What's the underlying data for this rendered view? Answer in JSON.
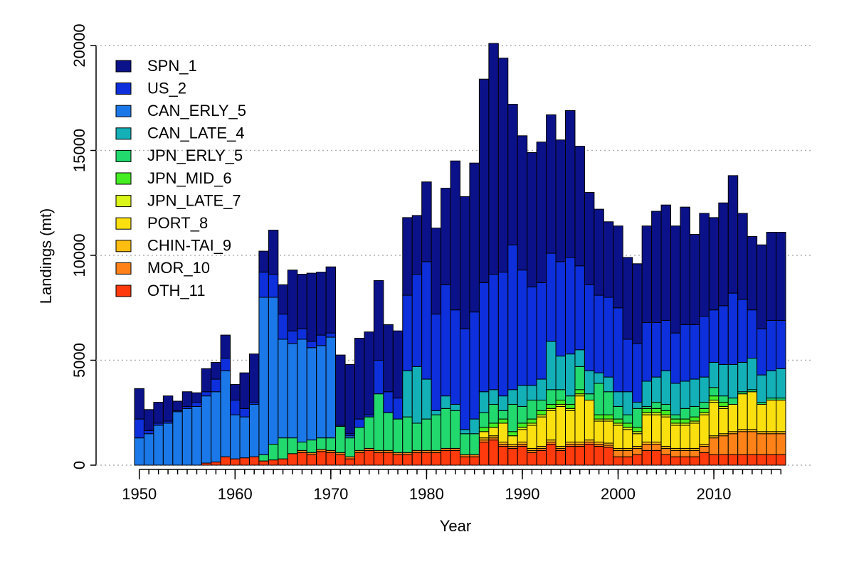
{
  "chart_data": {
    "type": "bar",
    "stacked": true,
    "x_label": "Year",
    "y_label": "Landings (mt)",
    "x": [
      1950,
      1951,
      1952,
      1953,
      1954,
      1955,
      1956,
      1957,
      1958,
      1959,
      1960,
      1961,
      1962,
      1963,
      1964,
      1965,
      1966,
      1967,
      1968,
      1969,
      1970,
      1971,
      1972,
      1973,
      1974,
      1975,
      1976,
      1977,
      1978,
      1979,
      1980,
      1981,
      1982,
      1983,
      1984,
      1985,
      1986,
      1987,
      1988,
      1989,
      1990,
      1991,
      1992,
      1993,
      1994,
      1995,
      1996,
      1997,
      1998,
      1999,
      2000,
      2001,
      2002,
      2003,
      2004,
      2005,
      2006,
      2007,
      2008,
      2009,
      2010,
      2011,
      2012,
      2013,
      2014,
      2015,
      2016,
      2017
    ],
    "series": [
      {
        "name": "SPN_1",
        "color": "#0b1289",
        "values": [
          1450,
          1000,
          1000,
          1200,
          450,
          700,
          450,
          1100,
          800,
          1100,
          750,
          1700,
          2300,
          1000,
          2100,
          1400,
          2900,
          2600,
          3250,
          3000,
          3150,
          3350,
          3300,
          3850,
          3950,
          3800,
          3200,
          3200,
          3700,
          2800,
          3800,
          4100,
          4600,
          7100,
          6300,
          7100,
          9700,
          11000,
          10200,
          6700,
          6400,
          6400,
          6700,
          6600,
          5800,
          7000,
          5700,
          4400,
          4100,
          3600,
          3900,
          3900,
          3800,
          4600,
          5300,
          5500,
          5100,
          5600,
          4300,
          4900,
          4400,
          4900,
          5600,
          4100,
          3500,
          4000,
          4200,
          4200
        ]
      },
      {
        "name": "US_2",
        "color": "#0d2fdc",
        "values": [
          900,
          150,
          100,
          100,
          50,
          100,
          200,
          200,
          600,
          600,
          700,
          400,
          100,
          1200,
          1100,
          1200,
          600,
          500,
          300,
          500,
          200,
          50,
          100,
          400,
          100,
          1600,
          1000,
          1000,
          3600,
          4400,
          5600,
          4600,
          5300,
          4500,
          4800,
          5100,
          5200,
          5500,
          5900,
          6900,
          5500,
          4700,
          4600,
          4200,
          4500,
          4600,
          4000,
          4100,
          3700,
          3800,
          4000,
          2500,
          2800,
          2800,
          2600,
          2400,
          2400,
          2700,
          2600,
          2900,
          2500,
          2800,
          3400,
          3000,
          2300,
          2200,
          2400,
          2300
        ]
      },
      {
        "name": "CAN_ERLY_5",
        "color": "#1b78e8",
        "values": [
          1300,
          1500,
          1900,
          2000,
          2550,
          2700,
          2800,
          3200,
          3350,
          4100,
          2100,
          1950,
          2500,
          7500,
          7000,
          4700,
          4500,
          4900,
          4400,
          4400,
          4800,
          0,
          100,
          0,
          0,
          0,
          0,
          0,
          0,
          0,
          0,
          0,
          0,
          0,
          0,
          0,
          0,
          0,
          0,
          0,
          0,
          0,
          0,
          0,
          0,
          0,
          0,
          0,
          0,
          0,
          0,
          0,
          0,
          0,
          0,
          0,
          0,
          0,
          0,
          0,
          0,
          0,
          0,
          0,
          0,
          0,
          0,
          0
        ]
      },
      {
        "name": "CAN_LATE_4",
        "color": "#13b0b8",
        "values": [
          0,
          0,
          0,
          0,
          0,
          0,
          0,
          0,
          0,
          0,
          0,
          0,
          0,
          0,
          0,
          0,
          0,
          0,
          0,
          0,
          0,
          0,
          0,
          0,
          0,
          0,
          0,
          0,
          2200,
          2700,
          1900,
          200,
          600,
          300,
          200,
          700,
          1000,
          700,
          700,
          700,
          1000,
          700,
          1000,
          2300,
          1600,
          2000,
          800,
          1100,
          500,
          700,
          700,
          1100,
          300,
          1200,
          1200,
          1600,
          1500,
          1300,
          1300,
          1200,
          1200,
          1500,
          1600,
          1400,
          1500,
          1300,
          1300,
          1400
        ]
      },
      {
        "name": "JPN_ERLY_5",
        "color": "#22d96e",
        "values": [
          0,
          0,
          0,
          0,
          0,
          0,
          0,
          0,
          0,
          0,
          0,
          0,
          0,
          300,
          750,
          1000,
          750,
          400,
          600,
          550,
          600,
          1250,
          900,
          1100,
          1500,
          2700,
          1800,
          1600,
          1700,
          1300,
          1500,
          1700,
          1900,
          1800,
          1000,
          1000,
          700,
          900,
          400,
          1300,
          800,
          900,
          500,
          700,
          500,
          400,
          1100,
          300,
          1500,
          1100,
          600,
          400,
          900,
          100,
          300,
          300,
          200,
          500,
          500,
          300,
          400,
          300,
          300,
          100,
          100,
          100,
          100,
          100
        ]
      },
      {
        "name": "JPN_MID_6",
        "color": "#44ee22",
        "values": [
          0,
          0,
          0,
          0,
          0,
          0,
          0,
          0,
          0,
          0,
          0,
          0,
          0,
          0,
          0,
          0,
          0,
          0,
          0,
          0,
          0,
          0,
          0,
          0,
          0,
          0,
          0,
          0,
          0,
          0,
          0,
          0,
          0,
          0,
          0,
          0,
          200,
          200,
          200,
          200,
          200,
          200,
          200,
          200,
          200,
          200,
          200,
          0,
          200,
          200,
          200,
          200,
          200,
          200,
          200,
          200,
          200,
          200,
          200,
          200,
          200,
          200,
          0,
          0,
          0,
          0,
          0,
          0
        ]
      },
      {
        "name": "JPN_LATE_7",
        "color": "#dcf518",
        "values": [
          0,
          0,
          0,
          0,
          0,
          0,
          0,
          0,
          0,
          0,
          0,
          0,
          0,
          0,
          0,
          0,
          0,
          0,
          0,
          0,
          0,
          0,
          0,
          0,
          0,
          0,
          0,
          0,
          0,
          0,
          0,
          0,
          0,
          0,
          0,
          0,
          0,
          0,
          0,
          0,
          100,
          100,
          100,
          100,
          100,
          100,
          100,
          0,
          100,
          100,
          100,
          100,
          100,
          100,
          100,
          100,
          100,
          100,
          100,
          100,
          100,
          100,
          0,
          0,
          0,
          0,
          0,
          0
        ]
      },
      {
        "name": "PORT_8",
        "color": "#fbe010",
        "values": [
          0,
          0,
          0,
          0,
          0,
          0,
          0,
          0,
          0,
          0,
          0,
          0,
          0,
          0,
          0,
          0,
          0,
          0,
          0,
          0,
          0,
          0,
          0,
          0,
          0,
          0,
          0,
          0,
          0,
          0,
          0,
          0,
          0,
          0,
          0,
          0,
          300,
          400,
          900,
          400,
          600,
          1100,
          1400,
          1400,
          1900,
          1500,
          2200,
          1900,
          1000,
          1050,
          1100,
          900,
          600,
          1300,
          1300,
          1400,
          1100,
          1100,
          1200,
          1400,
          1600,
          1200,
          1300,
          1700,
          1800,
          1300,
          1500,
          1500
        ]
      },
      {
        "name": "CHIN-TAI_9",
        "color": "#ffbd10",
        "values": [
          0,
          0,
          0,
          0,
          0,
          0,
          0,
          0,
          0,
          0,
          0,
          0,
          0,
          0,
          0,
          0,
          0,
          0,
          0,
          0,
          0,
          0,
          0,
          0,
          0,
          0,
          0,
          0,
          0,
          0,
          0,
          0,
          0,
          0,
          0,
          0,
          100,
          100,
          100,
          100,
          100,
          100,
          100,
          100,
          100,
          100,
          100,
          100,
          100,
          100,
          100,
          100,
          100,
          100,
          100,
          100,
          100,
          100,
          100,
          100,
          100,
          100,
          100,
          100,
          100,
          100,
          100,
          100
        ]
      },
      {
        "name": "MOR_10",
        "color": "#ff8218",
        "values": [
          0,
          0,
          0,
          0,
          0,
          0,
          0,
          0,
          0,
          0,
          0,
          0,
          0,
          0,
          0,
          0,
          0,
          100,
          100,
          100,
          100,
          100,
          100,
          100,
          100,
          100,
          100,
          100,
          100,
          100,
          100,
          100,
          100,
          100,
          100,
          100,
          100,
          100,
          100,
          100,
          100,
          100,
          100,
          100,
          100,
          100,
          100,
          100,
          100,
          100,
          300,
          300,
          300,
          300,
          300,
          300,
          300,
          300,
          300,
          300,
          800,
          900,
          1000,
          1100,
          1100,
          1000,
          1000,
          1000
        ]
      },
      {
        "name": "OTH_11",
        "color": "#ff3a0c",
        "values": [
          0,
          0,
          0,
          0,
          0,
          0,
          0,
          100,
          150,
          400,
          300,
          350,
          400,
          200,
          250,
          300,
          550,
          600,
          500,
          650,
          600,
          500,
          300,
          600,
          700,
          600,
          600,
          500,
          500,
          600,
          600,
          600,
          700,
          700,
          400,
          400,
          1100,
          1200,
          900,
          800,
          900,
          600,
          700,
          1000,
          700,
          900,
          900,
          1000,
          900,
          850,
          400,
          400,
          500,
          700,
          700,
          500,
          400,
          400,
          400,
          600,
          500,
          500,
          500,
          500,
          500,
          500,
          500,
          500
        ]
      }
    ],
    "xlim": [
      1949.5,
      2017.5
    ],
    "xticks": [
      1950,
      1960,
      1970,
      1980,
      1990,
      2000,
      2010
    ],
    "ylim": [
      0,
      20000
    ],
    "yticks": [
      0,
      5000,
      10000,
      15000,
      20000
    ],
    "grid": true,
    "legend": "top-left"
  }
}
